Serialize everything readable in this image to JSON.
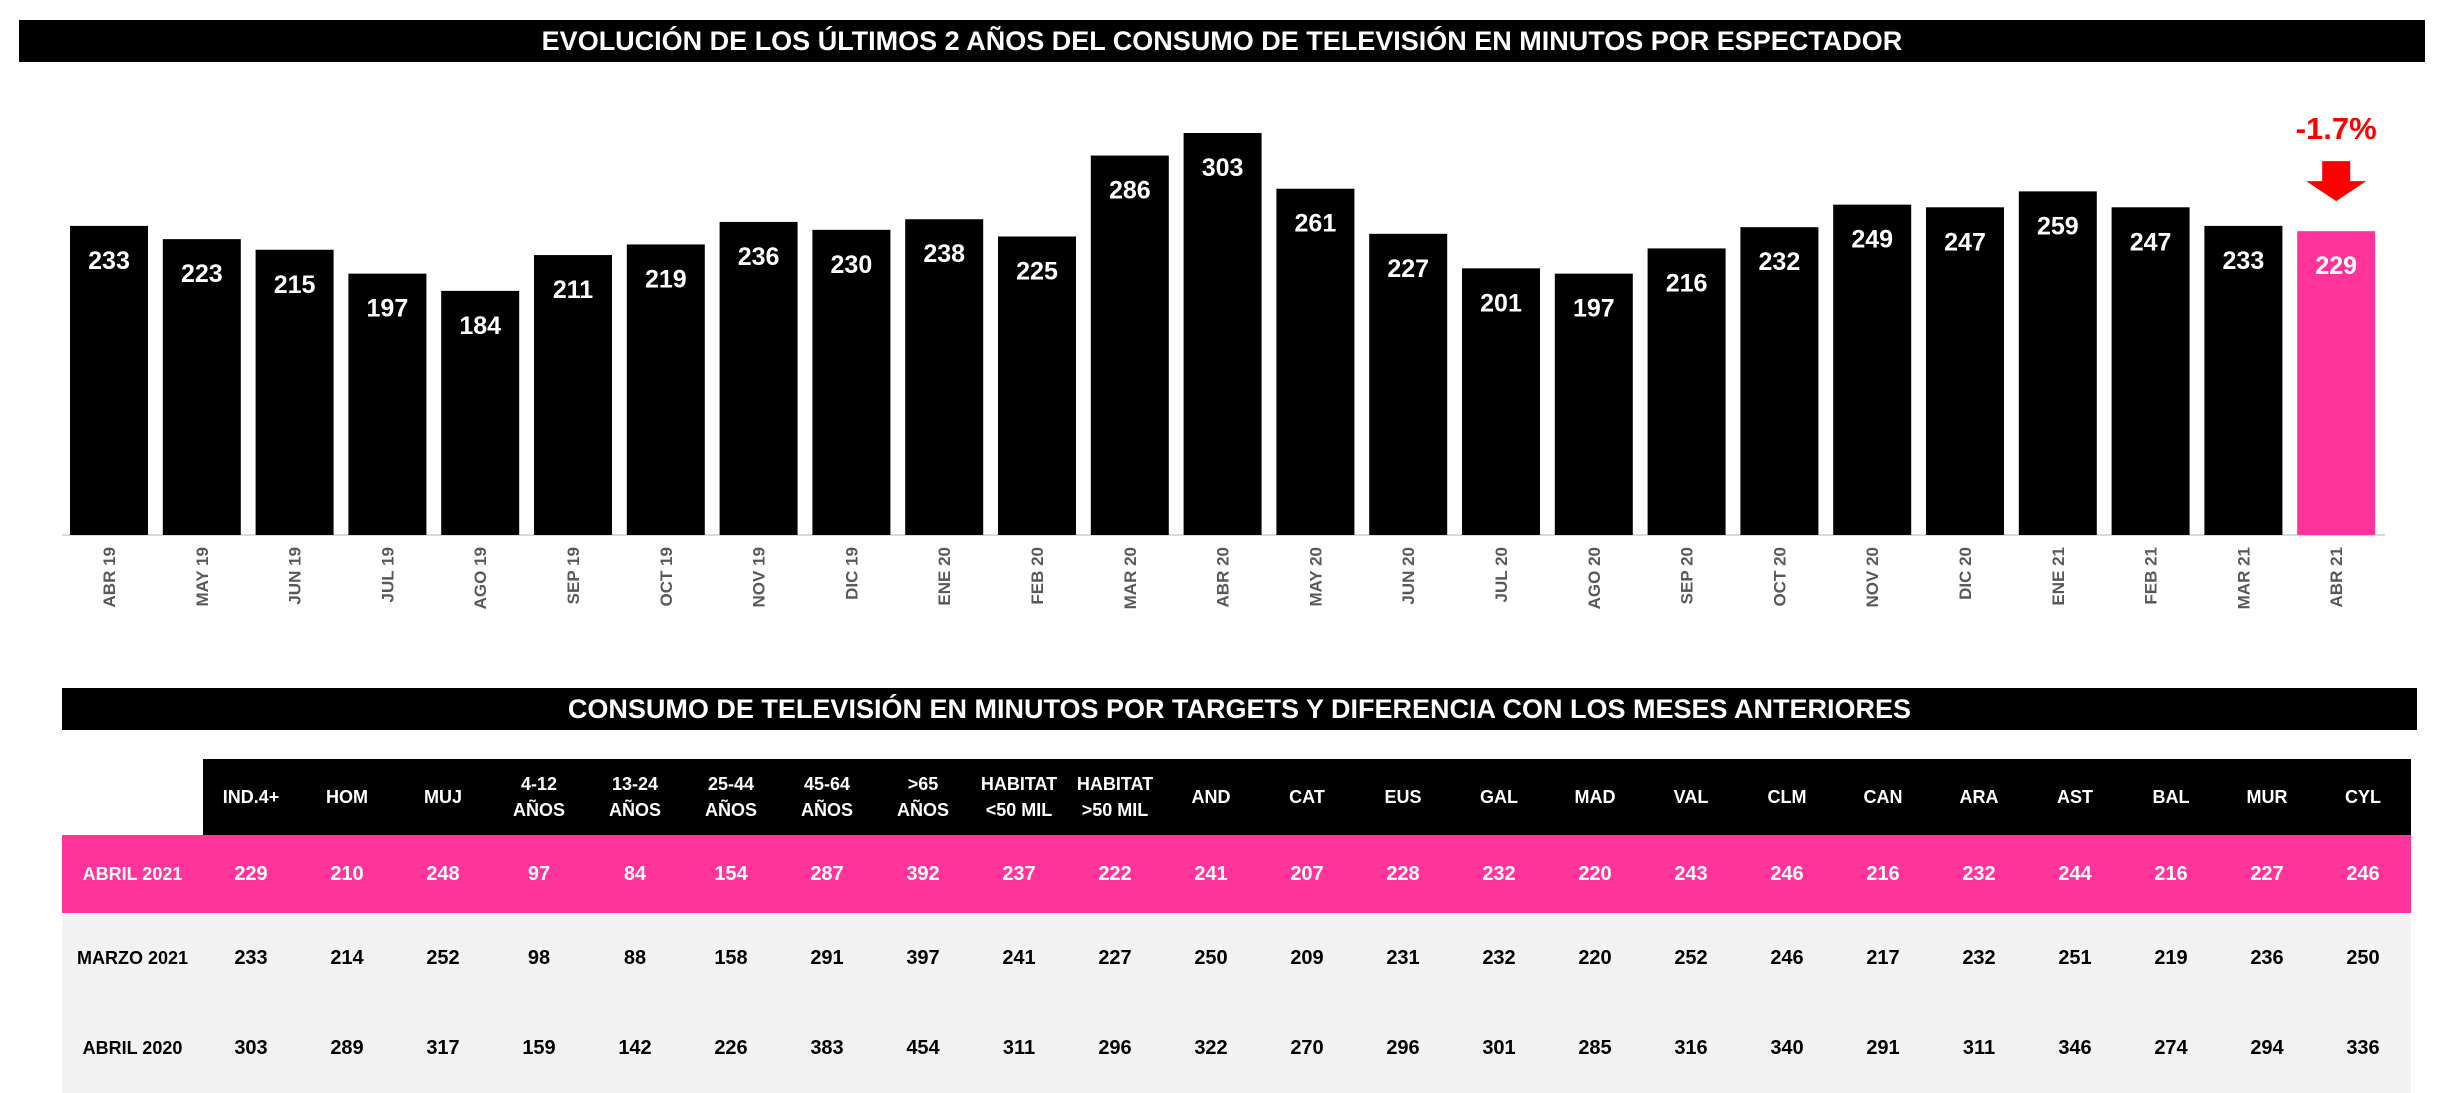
{
  "chart_title": "EVOLUCIÓN DE LOS ÚLTIMOS 2 AÑOS DEL CONSUMO DE TELEVISIÓN EN MINUTOS POR ESPECTADOR",
  "table_title": "CONSUMO DE TELEVISIÓN EN MINUTOS POR TARGETS Y DIFERENCIA CON LOS MESES ANTERIORES",
  "colors": {
    "bar": "#000000",
    "highlight": "#ff3399",
    "delta": "#ff0000",
    "row_bg": "#f2f2f2"
  },
  "chart_data": {
    "type": "bar",
    "title": "EVOLUCIÓN DE LOS ÚLTIMOS 2 AÑOS DEL CONSUMO DE TELEVISIÓN EN MINUTOS POR ESPECTADOR",
    "categories": [
      "ABR 19",
      "MAY 19",
      "JUN 19",
      "JUL 19",
      "AGO 19",
      "SEP 19",
      "OCT 19",
      "NOV 19",
      "DIC 19",
      "ENE 20",
      "FEB 20",
      "MAR 20",
      "ABR 20",
      "MAY 20",
      "JUN 20",
      "JUL 20",
      "AGO 20",
      "SEP 20",
      "OCT 20",
      "NOV 20",
      "DIC 20",
      "ENE 21",
      "FEB 21",
      "MAR 21",
      "ABR 21"
    ],
    "values": [
      233,
      223,
      215,
      197,
      184,
      211,
      219,
      236,
      230,
      238,
      225,
      286,
      303,
      261,
      227,
      201,
      197,
      216,
      232,
      249,
      247,
      259,
      247,
      233,
      229
    ],
    "highlight_index": 24,
    "annotation": {
      "text": "-1.7%",
      "icon": "arrow-down-icon"
    },
    "ylim": [
      0,
      303
    ],
    "grid": false,
    "data_labels": true
  },
  "table": {
    "headers": [
      [
        "IND.4+"
      ],
      [
        "HOM"
      ],
      [
        "MUJ"
      ],
      [
        "4-12",
        "AÑOS"
      ],
      [
        "13-24",
        "AÑOS"
      ],
      [
        "25-44",
        "AÑOS"
      ],
      [
        "45-64",
        "AÑOS"
      ],
      [
        ">65",
        "AÑOS"
      ],
      [
        "HABITAT",
        "<50 MIL"
      ],
      [
        "HABITAT",
        ">50 MIL"
      ],
      [
        "AND"
      ],
      [
        "CAT"
      ],
      [
        "EUS"
      ],
      [
        "GAL"
      ],
      [
        "MAD"
      ],
      [
        "VAL"
      ],
      [
        "CLM"
      ],
      [
        "CAN"
      ],
      [
        "ARA"
      ],
      [
        "AST"
      ],
      [
        "BAL"
      ],
      [
        "MUR"
      ],
      [
        "CYL"
      ]
    ],
    "rows": [
      {
        "label": "ABRIL 2021",
        "values": [
          229,
          210,
          248,
          97,
          84,
          154,
          287,
          392,
          237,
          222,
          241,
          207,
          228,
          232,
          220,
          243,
          246,
          216,
          232,
          244,
          216,
          227,
          246
        ]
      },
      {
        "label": "MARZO 2021",
        "values": [
          233,
          214,
          252,
          98,
          88,
          158,
          291,
          397,
          241,
          227,
          250,
          209,
          231,
          232,
          220,
          252,
          246,
          217,
          232,
          251,
          219,
          236,
          250
        ]
      },
      {
        "label": "ABRIL 2020",
        "values": [
          303,
          289,
          317,
          159,
          142,
          226,
          383,
          454,
          311,
          296,
          322,
          270,
          296,
          301,
          285,
          316,
          340,
          291,
          311,
          346,
          274,
          294,
          336
        ]
      }
    ]
  }
}
